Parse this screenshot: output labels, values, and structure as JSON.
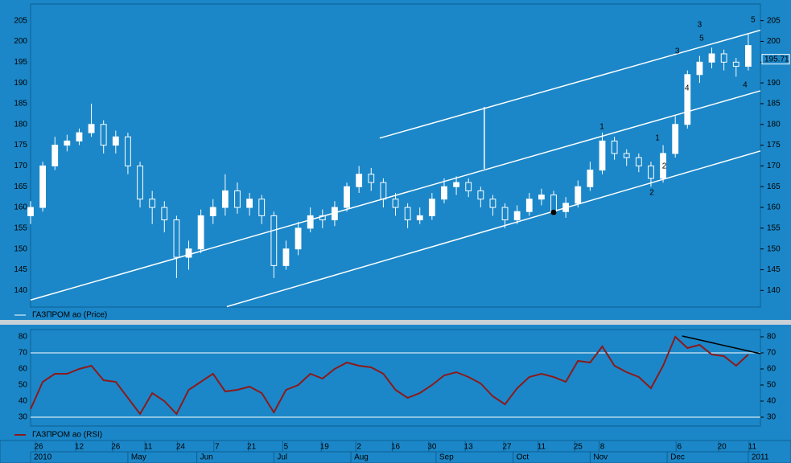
{
  "chart_data": [
    {
      "type": "candlestick",
      "legend": "ГАЗПРОМ ао (Price)",
      "legend_color": "#ffffff",
      "xlim": [
        0,
        180
      ],
      "ylim": [
        136,
        209
      ],
      "yticks": [
        140,
        145,
        150,
        155,
        160,
        165,
        170,
        175,
        180,
        185,
        190,
        195,
        200,
        205
      ],
      "x": [
        0,
        3,
        6,
        9,
        12,
        15,
        18,
        21,
        24,
        27,
        30,
        33,
        36,
        39,
        42,
        45,
        48,
        51,
        54,
        57,
        60,
        63,
        66,
        69,
        72,
        75,
        78,
        81,
        84,
        87,
        90,
        93,
        96,
        99,
        102,
        105,
        108,
        111,
        114,
        117,
        120,
        123,
        126,
        129,
        132,
        135,
        138,
        141,
        144,
        147,
        150,
        153,
        156,
        159,
        162,
        165,
        168,
        171,
        174,
        177
      ],
      "open": [
        158,
        160,
        170,
        175,
        176,
        178,
        180,
        175,
        177,
        170,
        162,
        160,
        157,
        148,
        150,
        158,
        160,
        164,
        160,
        162,
        158,
        146,
        150,
        155,
        158,
        157,
        160,
        165,
        168,
        166,
        162,
        160,
        157,
        158,
        162,
        165,
        166,
        164,
        162,
        160,
        157,
        159,
        162,
        163,
        159,
        161,
        165,
        169,
        176,
        173,
        172,
        170,
        167,
        173,
        180,
        192,
        195,
        197,
        195,
        194
      ],
      "high": [
        161.5,
        171,
        177,
        177.5,
        179,
        185,
        181,
        178.5,
        178,
        171,
        164,
        161.5,
        158,
        152,
        159.5,
        162,
        168,
        166,
        163.5,
        163,
        159,
        152,
        156.5,
        160,
        159.5,
        161.5,
        166,
        170,
        169.5,
        167,
        163.5,
        161,
        160,
        163.5,
        167,
        167.5,
        167,
        165,
        163,
        161,
        160.5,
        163.5,
        164.5,
        164,
        162.5,
        166.5,
        171,
        178,
        177,
        174,
        173,
        171,
        175,
        182,
        193,
        196.5,
        198.5,
        198,
        196,
        202
      ],
      "low": [
        156,
        159,
        169,
        173.5,
        175,
        177,
        173,
        173,
        168,
        160,
        156,
        154,
        143,
        145,
        149,
        156,
        158,
        158.5,
        158,
        156,
        143,
        145,
        148.5,
        154,
        155,
        155.5,
        159,
        163.5,
        164,
        160,
        158,
        155,
        156,
        157,
        161,
        163,
        162.5,
        160,
        158,
        155,
        156,
        158,
        160.5,
        158,
        157.5,
        160,
        164,
        168,
        171.5,
        170,
        168.5,
        165,
        166,
        172,
        179,
        190,
        193.5,
        193,
        191.5,
        193
      ],
      "close": [
        160,
        170,
        175,
        176,
        178,
        180,
        175,
        177,
        170,
        162,
        160,
        157,
        148,
        150,
        158,
        160,
        164,
        160,
        162,
        158,
        146,
        150,
        155,
        158,
        157,
        160,
        165,
        168,
        166,
        162,
        160,
        157,
        158,
        162,
        165,
        166,
        164,
        162,
        160,
        157,
        159,
        162,
        163,
        159,
        161,
        165,
        169,
        176,
        173,
        172,
        170,
        167,
        173,
        180,
        192,
        195,
        197,
        195,
        194,
        199
      ],
      "candle_color": "#ffffff",
      "last_price": 195.71,
      "lines": [
        {
          "x": [
            0,
            180
          ],
          "y": [
            137.7,
            188.1
          ],
          "color": "#ffffff"
        },
        {
          "x": [
            48.4,
            180
          ],
          "y": [
            136.1,
            173.6
          ],
          "color": "#ffffff"
        },
        {
          "x": [
            86.1,
            180
          ],
          "y": [
            176.7,
            202.7
          ],
          "color": "#ffffff"
        },
        {
          "x": [
            111.9,
            111.9
          ],
          "y": [
            184.2,
            169.3
          ],
          "color": "#ffffff"
        }
      ],
      "points": [
        {
          "x": 129,
          "y": 158.8,
          "color": "#000000"
        }
      ],
      "annotations": [
        {
          "text": "1",
          "x": 140.9,
          "y": 179.4,
          "color": "#ffffff"
        },
        {
          "text": "2",
          "x": 153.2,
          "y": 163.5,
          "color": "#ffffff"
        },
        {
          "text": "1",
          "x": 154.6,
          "y": 176.7,
          "color": "#000000"
        },
        {
          "text": "2",
          "x": 156.3,
          "y": 169.9,
          "color": "#000000"
        },
        {
          "text": "3",
          "x": 159.5,
          "y": 197.6,
          "color": "#000000"
        },
        {
          "text": "4",
          "x": 161.9,
          "y": 188.7,
          "color": "#ffffff"
        },
        {
          "text": "3",
          "x": 165,
          "y": 204,
          "color": "#ffffff"
        },
        {
          "text": "5",
          "x": 165.5,
          "y": 200.7,
          "color": "#000000"
        },
        {
          "text": "5",
          "x": 178.2,
          "y": 205.2,
          "color": "#ffffff"
        },
        {
          "text": "4",
          "x": 176.2,
          "y": 189.5,
          "color": "#ffffff"
        }
      ],
      "xticks": [
        {
          "value": 2,
          "label": "26"
        },
        {
          "value": 12,
          "label": "12"
        },
        {
          "value": 21,
          "label": "26"
        },
        {
          "value": 29,
          "label": "11"
        },
        {
          "value": 37,
          "label": "24"
        },
        {
          "value": 46,
          "label": "7"
        },
        {
          "value": 54.5,
          "label": "21"
        },
        {
          "value": 63,
          "label": "5"
        },
        {
          "value": 72.5,
          "label": "19"
        },
        {
          "value": 81,
          "label": "2"
        },
        {
          "value": 90,
          "label": "16"
        },
        {
          "value": 99,
          "label": "30"
        },
        {
          "value": 108,
          "label": "13"
        },
        {
          "value": 117.5,
          "label": "27"
        },
        {
          "value": 126,
          "label": "11"
        },
        {
          "value": 135,
          "label": "25"
        },
        {
          "value": 141,
          "label": "8"
        },
        {
          "value": 160,
          "label": "6"
        },
        {
          "value": 170.5,
          "label": "20"
        },
        {
          "value": 178,
          "label": "11"
        }
      ],
      "xticks_months": [
        {
          "value": 0,
          "label": "2010"
        },
        {
          "value": 24,
          "label": "May"
        },
        {
          "value": 41,
          "label": "Jun"
        },
        {
          "value": 60,
          "label": "Jul"
        },
        {
          "value": 79,
          "label": "Aug"
        },
        {
          "value": 100,
          "label": "Sep"
        },
        {
          "value": 119,
          "label": "Oct"
        },
        {
          "value": 138,
          "label": "Nov"
        },
        {
          "value": 157,
          "label": "Dec"
        },
        {
          "value": 177,
          "label": "2011"
        }
      ]
    },
    {
      "type": "line",
      "legend": "ГАЗПРОМ ао (RSI)",
      "xlim": [
        0,
        180
      ],
      "ylim": [
        24.5,
        84.5
      ],
      "yticks": [
        30,
        40,
        50,
        60,
        70,
        80
      ],
      "hlines": [
        70,
        30
      ],
      "color": "#8b1a1a",
      "x": [
        0,
        3,
        6,
        9,
        12,
        15,
        18,
        21,
        24,
        27,
        30,
        33,
        36,
        39,
        42,
        45,
        48,
        51,
        54,
        57,
        60,
        63,
        66,
        69,
        72,
        75,
        78,
        81,
        84,
        87,
        90,
        93,
        96,
        99,
        102,
        105,
        108,
        111,
        114,
        117,
        120,
        123,
        126,
        129,
        132,
        135,
        138,
        141,
        144,
        147,
        150,
        153,
        156,
        159,
        162,
        165,
        168,
        171,
        174,
        177
      ],
      "values": [
        35,
        52,
        57,
        57,
        60,
        62,
        53,
        52,
        42,
        32,
        45,
        40,
        32,
        47,
        52,
        57,
        46,
        47,
        49,
        45,
        33,
        47,
        50,
        57,
        54,
        60,
        64,
        62,
        61,
        57,
        47,
        42,
        45,
        50,
        56,
        58,
        55,
        51,
        43,
        38,
        48,
        55,
        57,
        55,
        52,
        65,
        64,
        74,
        62,
        58,
        55,
        48,
        62,
        80,
        73,
        75,
        69,
        68,
        62,
        69
      ],
      "lines": [
        {
          "x": [
            160.7,
            180
          ],
          "y": [
            80.5,
            69.5
          ],
          "color": "#000000"
        }
      ]
    }
  ]
}
